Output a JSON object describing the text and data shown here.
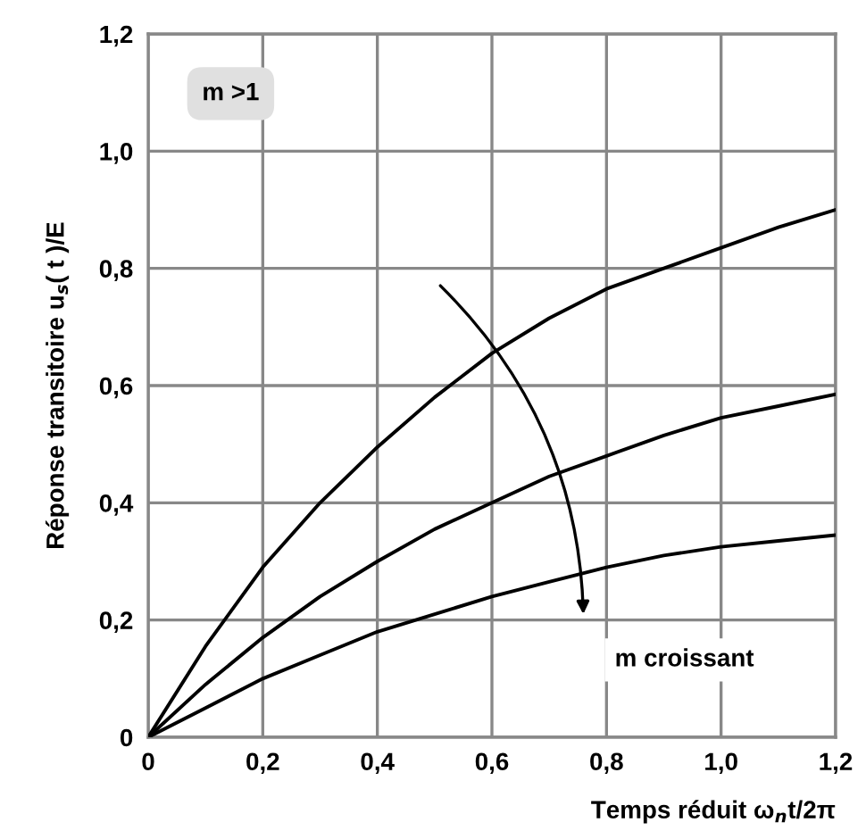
{
  "chart_data": {
    "type": "line",
    "xlabel": "Temps réduit ω$_{n}$t/2π",
    "ylabel": "Réponse transitoire u$_{s}$( t )/E",
    "series": [
      {
        "color": "#000000",
        "x": [
          0,
          0.1,
          0.2,
          0.3,
          0.4,
          0.5,
          0.6,
          0.7,
          0.8,
          0.9,
          1.0,
          1.1,
          1.2
        ],
        "values": [
          0,
          0.155,
          0.29,
          0.4,
          0.495,
          0.58,
          0.655,
          0.715,
          0.765,
          0.8,
          0.835,
          0.87,
          0.9
        ]
      },
      {
        "color": "#000000",
        "x": [
          0,
          0.1,
          0.2,
          0.3,
          0.4,
          0.5,
          0.6,
          0.7,
          0.8,
          0.9,
          1.0,
          1.1,
          1.2
        ],
        "values": [
          0,
          0.09,
          0.17,
          0.24,
          0.3,
          0.355,
          0.4,
          0.445,
          0.48,
          0.515,
          0.545,
          0.565,
          0.585
        ]
      },
      {
        "color": "#000000",
        "x": [
          0,
          0.1,
          0.2,
          0.3,
          0.4,
          0.5,
          0.6,
          0.7,
          0.8,
          0.9,
          1.0,
          1.1,
          1.2
        ],
        "values": [
          0,
          0.05,
          0.1,
          0.14,
          0.18,
          0.21,
          0.24,
          0.265,
          0.29,
          0.31,
          0.325,
          0.335,
          0.345
        ]
      }
    ],
    "annotations": [
      "m >1",
      "m croissant"
    ],
    "xlim": [
      0,
      1.2
    ],
    "ylim": [
      0,
      1.2
    ],
    "xticks": [
      0,
      {
        "value": 0.2,
        "label": "0,2"
      },
      {
        "value": 0.4,
        "label": "0,4"
      },
      {
        "value": 0.6,
        "label": "0,6"
      },
      {
        "value": 0.8,
        "label": "0,8"
      },
      {
        "value": 1.0,
        "label": "1,0"
      },
      {
        "value": 1.2,
        "label": "1,2"
      }
    ],
    "yticks": [
      0,
      {
        "value": 0.2,
        "label": "0,2"
      },
      {
        "value": 0.4,
        "label": "0,4"
      },
      {
        "value": 0.6,
        "label": "0,6"
      },
      {
        "value": 0.8,
        "label": "0,8"
      },
      {
        "value": 1.0,
        "label": "1,0"
      },
      {
        "value": 1.2,
        "label": "1,2"
      }
    ],
    "grid": true,
    "marker": "none",
    "line_style": "solid",
    "legend": false
  }
}
